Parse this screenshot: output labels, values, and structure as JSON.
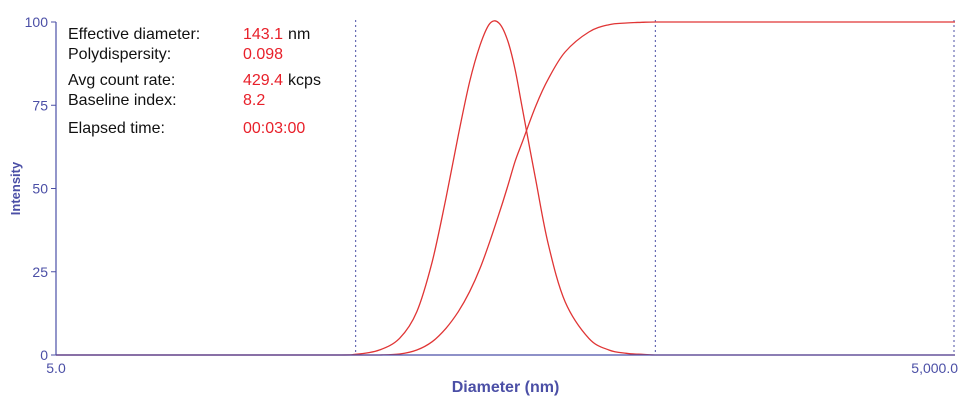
{
  "colors": {
    "axis": "#4b4fa6",
    "curve": "#e03535",
    "value_text": "#e8202a",
    "label_text": "#111111"
  },
  "stats": [
    {
      "label": "Effective diameter:",
      "value": "143.1",
      "unit": "nm"
    },
    {
      "label": "Polydispersity:",
      "value": "0.098",
      "unit": ""
    },
    {
      "label": "Avg count rate:",
      "value": "429.4",
      "unit": "kcps"
    },
    {
      "label": "Baseline index:",
      "value": "8.2",
      "unit": ""
    },
    {
      "label": "Elapsed time:",
      "value": "00:03:00",
      "unit": ""
    }
  ],
  "chart_data": {
    "type": "line",
    "title": "",
    "xlabel": "Diameter (nm)",
    "ylabel": "Intensity",
    "x_scale": "log",
    "xlim": [
      5.0,
      5000.0
    ],
    "ylim": [
      0,
      100
    ],
    "x_tick_labels": [
      "5.0",
      "5,000.0"
    ],
    "y_ticks": [
      0,
      25,
      50,
      75,
      100
    ],
    "y_tick_labels": [
      "0",
      "25",
      "50",
      "75",
      "100"
    ],
    "vertical_reference_lines": [
      50,
      500,
      5000
    ],
    "grid": false,
    "series": [
      {
        "kind": "distribution",
        "x": [
          5,
          10,
          40,
          50,
          60,
          70,
          80,
          90,
          100,
          110,
          120,
          130,
          140,
          150,
          160,
          170,
          180,
          200,
          220,
          250,
          300,
          350,
          400,
          450,
          500,
          700,
          1000,
          5000
        ],
        "y": [
          0,
          0,
          0,
          0.2,
          1.5,
          5,
          13,
          28,
          47,
          66,
          82,
          93,
          99.5,
          99.8,
          95,
          86,
          74,
          52,
          33,
          16,
          5,
          1.5,
          0.5,
          0.2,
          0,
          0,
          0,
          0
        ]
      },
      {
        "kind": "cumulative",
        "x": [
          5,
          10,
          40,
          50,
          60,
          70,
          80,
          90,
          100,
          110,
          120,
          130,
          140,
          150,
          160,
          170,
          180,
          200,
          220,
          250,
          300,
          350,
          400,
          450,
          500,
          700,
          1000,
          5000
        ],
        "y": [
          0,
          0,
          0,
          0,
          0,
          0.3,
          1.5,
          4,
          8,
          13,
          19,
          26,
          34,
          42,
          50,
          58,
          64,
          75,
          83,
          91,
          97,
          99.2,
          99.7,
          99.9,
          100,
          100,
          100,
          100
        ]
      }
    ]
  }
}
